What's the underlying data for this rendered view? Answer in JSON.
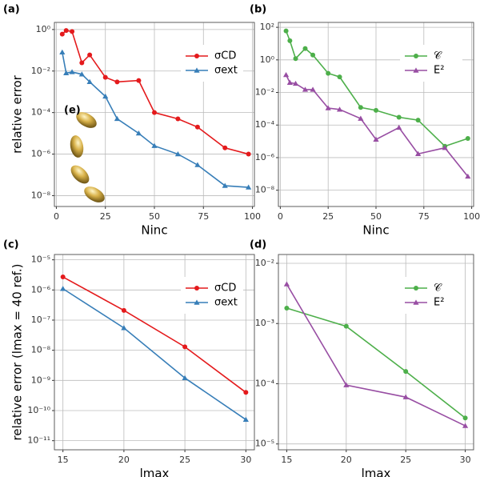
{
  "chart_data": [
    {
      "type": "line",
      "panel_label": "(a)",
      "inset_label": "(e)",
      "xlabel": "Ninc",
      "ylabel": "relative error",
      "x": [
        3,
        5,
        8,
        13,
        17,
        25,
        31,
        42,
        50,
        62,
        72,
        86,
        98
      ],
      "xlim": [
        -1,
        101
      ],
      "xticks": [
        0,
        25,
        50,
        75,
        100
      ],
      "log_y": true,
      "ylim": [
        3e-09,
        2.2
      ],
      "yticks": [
        {
          "value": 1,
          "label": "10⁰"
        },
        {
          "value": 0.01,
          "label": "10⁻²"
        },
        {
          "value": 0.0001,
          "label": "10⁻⁴"
        },
        {
          "value": 1e-06,
          "label": "10⁻⁶"
        },
        {
          "value": 1e-08,
          "label": "10⁻⁸"
        }
      ],
      "grid": true,
      "legend": "upper right",
      "series": [
        {
          "name": "σCD",
          "color": "#e41a1c",
          "marker": "circle",
          "values": [
            0.6,
            0.9,
            0.8,
            0.025,
            0.06,
            0.005,
            0.003,
            0.0035,
            0.0001,
            5e-05,
            2e-05,
            2e-06,
            1e-06
          ]
        },
        {
          "name": "σext",
          "color": "#377eb8",
          "marker": "triangle",
          "values": [
            0.08,
            0.008,
            0.009,
            0.007,
            0.003,
            0.0006,
            5e-05,
            1e-05,
            2.5e-06,
            1e-06,
            3e-07,
            3e-08,
            2.5e-08
          ]
        }
      ]
    },
    {
      "type": "line",
      "panel_label": "(b)",
      "xlabel": "Ninc",
      "x": [
        3,
        5,
        8,
        13,
        17,
        25,
        31,
        42,
        50,
        62,
        72,
        86,
        98
      ],
      "xlim": [
        -1,
        101
      ],
      "xticks": [
        0,
        25,
        50,
        75,
        100
      ],
      "log_y": true,
      "ylim": [
        1e-09,
        200
      ],
      "yticks": [
        {
          "value": 100,
          "label": "10²"
        },
        {
          "value": 1,
          "label": "10⁰"
        },
        {
          "value": 0.01,
          "label": "10⁻²"
        },
        {
          "value": 0.0001,
          "label": "10⁻⁴"
        },
        {
          "value": 1e-06,
          "label": "10⁻⁶"
        },
        {
          "value": 1e-08,
          "label": "10⁻⁸"
        }
      ],
      "grid": true,
      "legend": "upper right",
      "series": [
        {
          "name": "𝒞",
          "color": "#4daf4a",
          "marker": "circle",
          "values": [
            60,
            15,
            1.2,
            5,
            2,
            0.15,
            0.09,
            0.0012,
            0.0008,
            0.0003,
            0.0002,
            5e-06,
            1.5e-05
          ]
        },
        {
          "name": "E²",
          "color": "#984ea3",
          "marker": "triangle",
          "values": [
            0.12,
            0.04,
            0.035,
            0.015,
            0.015,
            0.0011,
            0.0009,
            0.00025,
            1.3e-05,
            7e-05,
            1.7e-06,
            4e-06,
            7e-08
          ]
        }
      ]
    },
    {
      "type": "line",
      "panel_label": "(c)",
      "xlabel": "lmax",
      "ylabel": "relative error (lmax = 40 ref.)",
      "x": [
        15,
        20,
        25,
        30
      ],
      "xlim": [
        14.3,
        30.7
      ],
      "xticks": [
        15,
        20,
        25,
        30
      ],
      "log_y": true,
      "ylim": [
        5e-12,
        1.5e-05
      ],
      "yticks": [
        {
          "value": 1e-05,
          "label": "10⁻⁵"
        },
        {
          "value": 1e-06,
          "label": "10⁻⁶"
        },
        {
          "value": 1e-07,
          "label": "10⁻⁷"
        },
        {
          "value": 1e-08,
          "label": "10⁻⁸"
        },
        {
          "value": 1e-09,
          "label": "10⁻⁹"
        },
        {
          "value": 1e-10,
          "label": "10⁻¹⁰"
        },
        {
          "value": 1e-11,
          "label": "10⁻¹¹"
        }
      ],
      "grid": true,
      "legend": "upper right",
      "series": [
        {
          "name": "σCD",
          "color": "#e41a1c",
          "marker": "circle",
          "values": [
            2.7e-06,
            2.1e-07,
            1.3e-08,
            4e-10
          ]
        },
        {
          "name": "σext",
          "color": "#377eb8",
          "marker": "triangle",
          "values": [
            1.1e-06,
            5.5e-08,
            1.2e-09,
            5e-11
          ]
        }
      ]
    },
    {
      "type": "line",
      "panel_label": "(d)",
      "xlabel": "lmax",
      "x": [
        15,
        20,
        25,
        30
      ],
      "xlim": [
        14.3,
        30.7
      ],
      "xticks": [
        15,
        20,
        25,
        30
      ],
      "log_y": true,
      "ylim": [
        8e-06,
        0.014
      ],
      "yticks": [
        {
          "value": 0.01,
          "label": "10⁻²"
        },
        {
          "value": 0.001,
          "label": "10⁻³"
        },
        {
          "value": 0.0001,
          "label": "10⁻⁴"
        },
        {
          "value": 1e-05,
          "label": "10⁻⁵"
        }
      ],
      "grid": true,
      "legend": "upper right",
      "series": [
        {
          "name": "𝒞",
          "color": "#4daf4a",
          "marker": "circle",
          "values": [
            0.0018,
            0.0009,
            0.00016,
            2.7e-05
          ]
        },
        {
          "name": "E²",
          "color": "#984ea3",
          "marker": "triangle",
          "values": [
            0.0045,
            9.5e-05,
            6e-05,
            2e-05
          ]
        }
      ]
    }
  ]
}
